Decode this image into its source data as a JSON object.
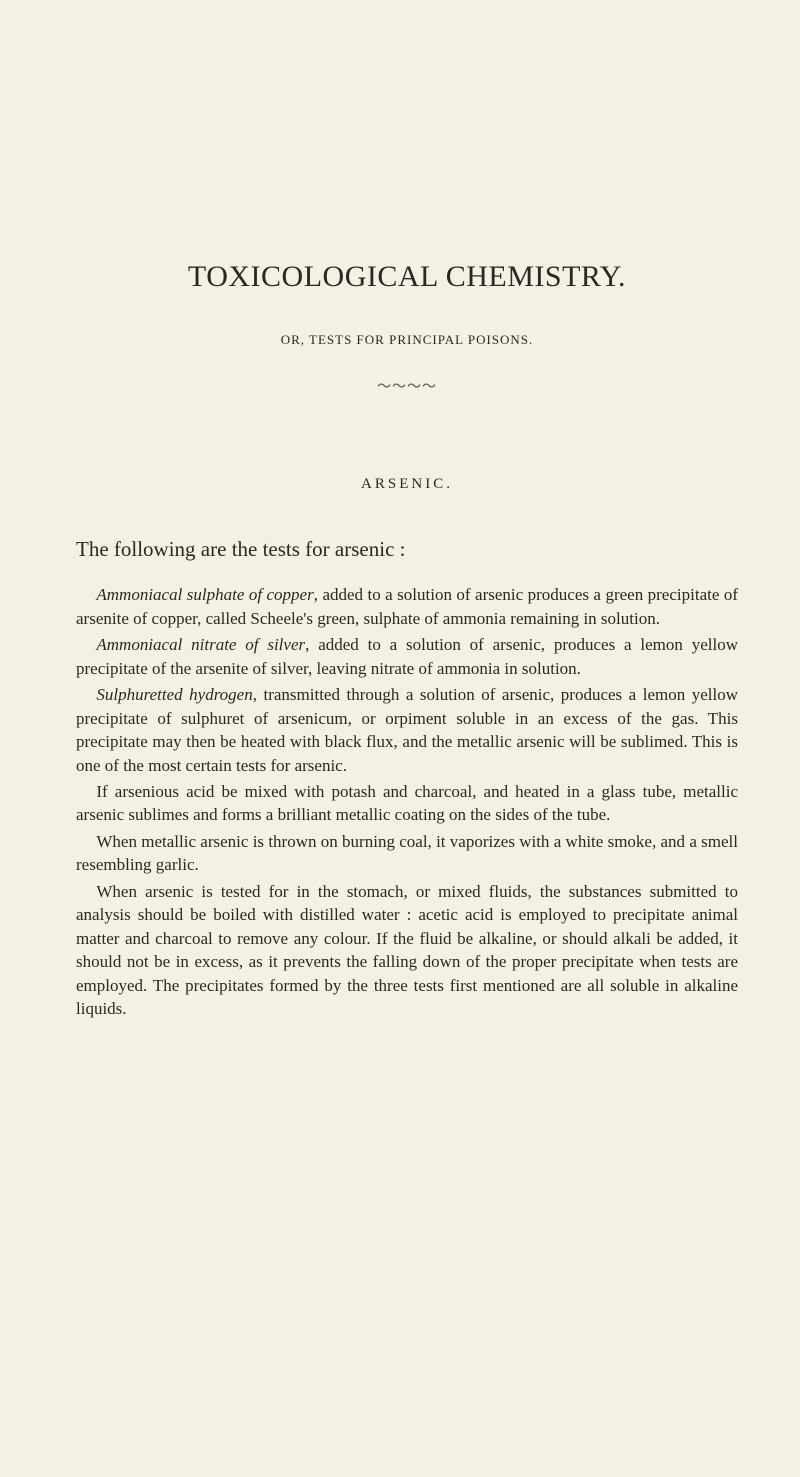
{
  "colors": {
    "background": "#f4f0e5",
    "text": "#2e2721",
    "divider": "#5a4f42"
  },
  "typography": {
    "title_fontsize": 30,
    "subtitle_fontsize": 13,
    "section_heading_fontsize": 15,
    "lead_fontsize": 21,
    "body_fontsize": 17,
    "family": "Times New Roman"
  },
  "title": "TOXICOLOGICAL CHEMISTRY.",
  "subtitle": "OR, TESTS FOR PRINCIPAL POISONS.",
  "divider_glyph": "～～～～",
  "section_heading": "ARSENIC.",
  "lead": "The following are the tests for arsenic :",
  "paragraphs": {
    "p1_em": "Ammoniacal sulphate of copper",
    "p1_rest": ", added to a solution of arsenic produces a green precipitate of arsenite of copper, called Scheele's green, sulphate of ammonia remaining in solution.",
    "p2_em": "Ammoniacal nitrate of silver",
    "p2_rest": ", added to a solution of arsenic, produces a lemon yellow precipitate of the arsenite of silver, leaving nitrate of ammonia in solution.",
    "p3_em": "Sulphuretted hydrogen",
    "p3_rest": ", transmitted through a solution of arsenic, produces a lemon yellow precipitate of sulphuret of arsenicum, or orpiment soluble in an excess of the gas. This precipitate may then be heated with black flux, and the metallic arsenic will be sublimed. This is one of the most certain tests for arsenic.",
    "p4": "If arsenious acid be mixed with potash and charcoal, and heated in a glass tube, metallic arsenic sublimes and forms a brilliant metallic coating on the sides of the tube.",
    "p5": "When metallic arsenic is thrown on burning coal, it vaporizes with a white smoke, and a smell resembling garlic.",
    "p6": "When arsenic is tested for in the stomach, or mixed fluids, the substances submitted to analysis should be boiled with distilled water : acetic acid is employed to precipitate animal matter and charcoal to remove any colour. If the fluid be alkaline, or should alkali be added, it should not be in excess, as it prevents the falling down of the proper precipitate when tests are employed. The precipitates formed by the three tests first mentioned are all soluble in alkaline liquids."
  }
}
